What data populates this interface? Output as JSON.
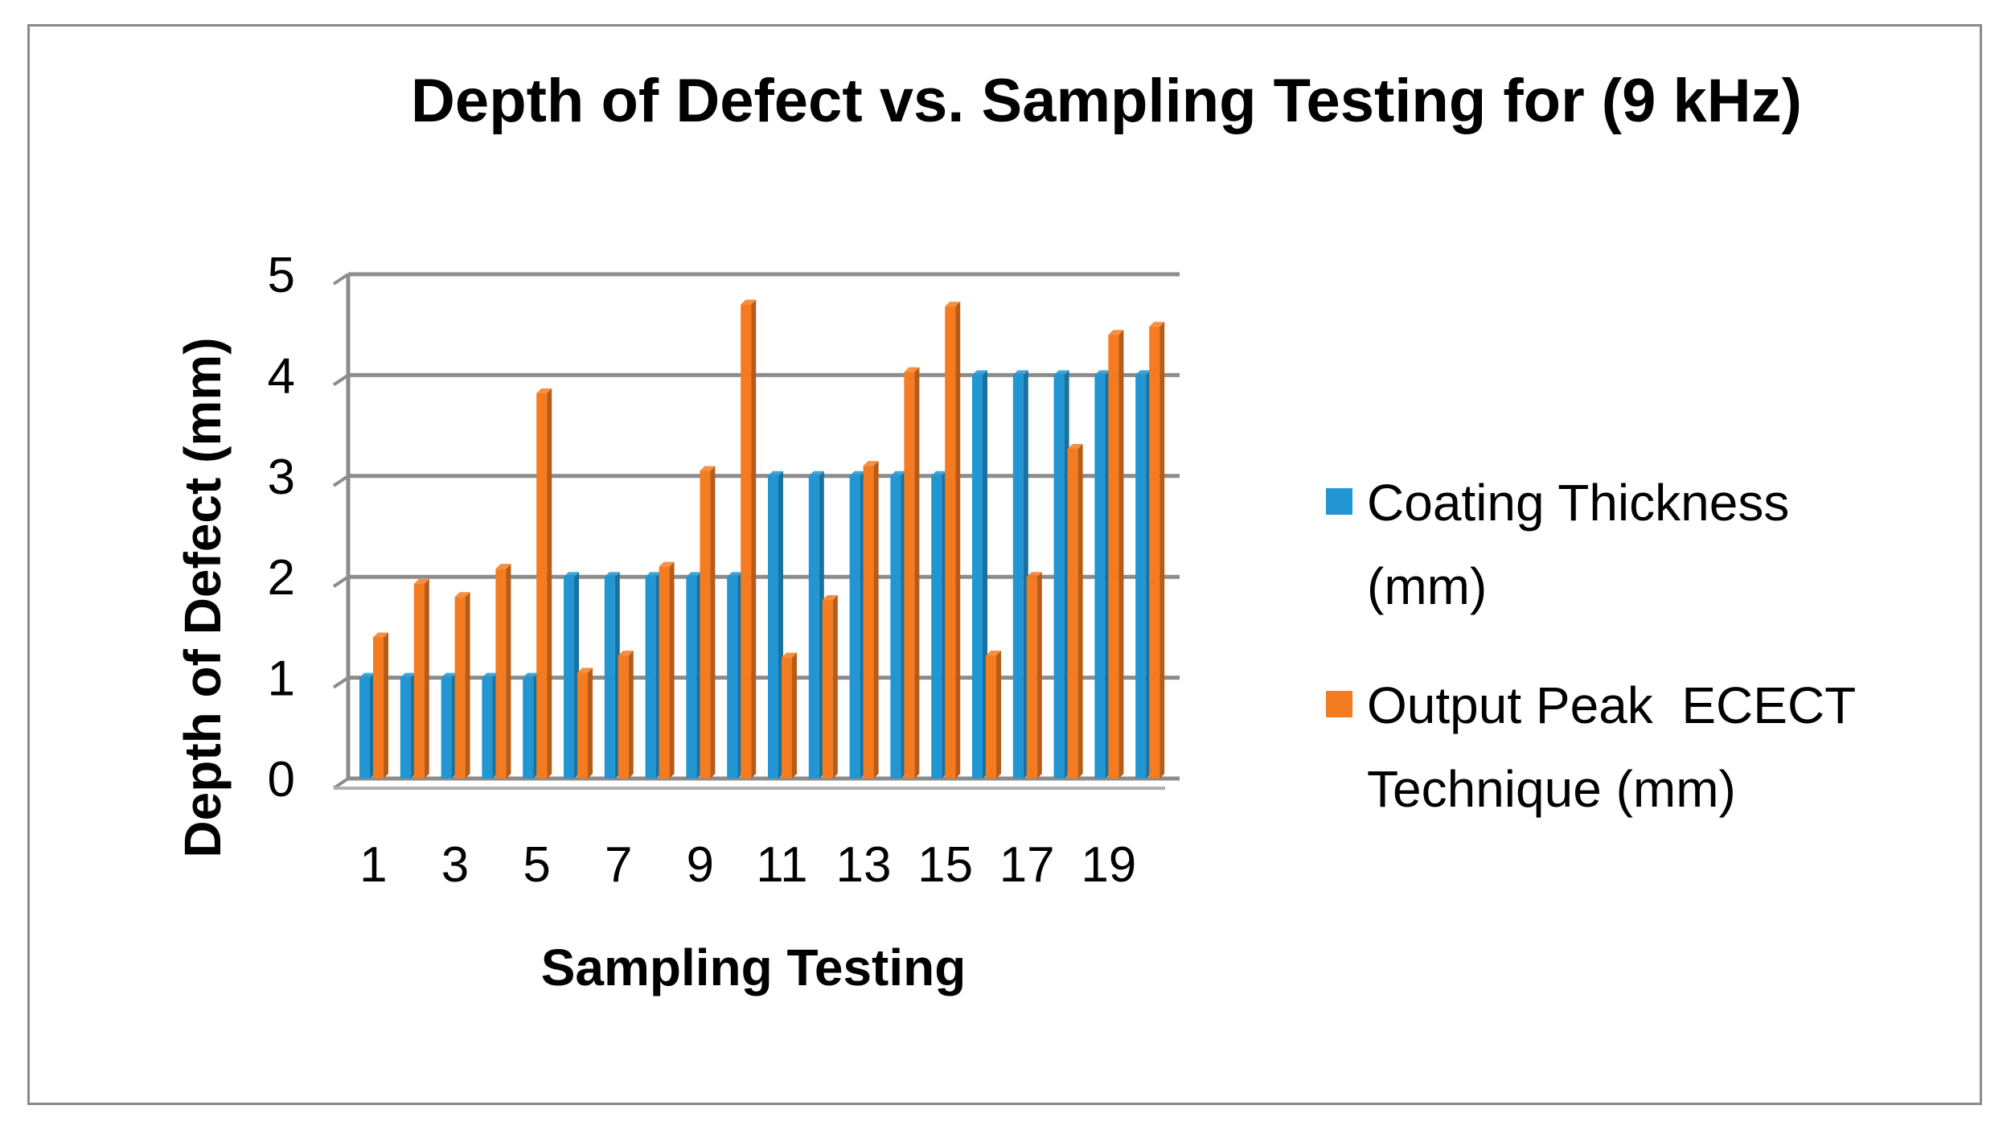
{
  "chart_data": {
    "type": "bar",
    "title": "Depth of Defect vs. Sampling Testing for (9 kHz)",
    "xlabel": "Sampling Testing",
    "ylabel": "Depth of Defect (mm)",
    "ylim": [
      0,
      5
    ],
    "yticks": [
      0,
      1,
      2,
      3,
      4,
      5
    ],
    "categories": [
      "1",
      "2",
      "3",
      "4",
      "5",
      "6",
      "7",
      "8",
      "9",
      "10",
      "11",
      "12",
      "13",
      "14",
      "15",
      "16",
      "17",
      "18",
      "19",
      "20"
    ],
    "xtick_labels": [
      "1",
      "3",
      "5",
      "7",
      "9",
      "11",
      "13",
      "15",
      "17",
      "19"
    ],
    "grid": true,
    "legend_position": "right",
    "series": [
      {
        "name": "Coating Thickness (mm)",
        "legend_lines": [
          "Coating Thickness",
          "(mm)"
        ],
        "color": "#2196D3",
        "values": [
          1,
          1,
          1,
          1,
          1,
          2,
          2,
          2,
          2,
          2,
          3,
          3,
          3,
          3,
          3,
          4,
          4,
          4,
          4,
          4
        ]
      },
      {
        "name": "Output Peak  ECECT Technique (mm)",
        "legend_lines": [
          "Output Peak  ECECT",
          "Technique (mm)"
        ],
        "color": "#F47B20",
        "values": [
          1.4,
          1.93,
          1.8,
          2.08,
          3.82,
          1.05,
          1.22,
          2.1,
          3.05,
          4.7,
          1.2,
          1.77,
          3.1,
          4.03,
          4.68,
          1.22,
          2.0,
          3.27,
          4.4,
          4.48
        ]
      }
    ]
  }
}
